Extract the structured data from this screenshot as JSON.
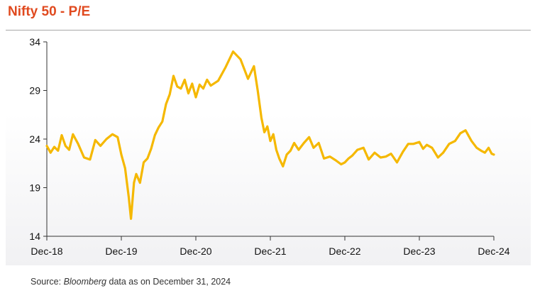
{
  "title": "Nifty 50 - P/E",
  "source": {
    "prefix": "Source: ",
    "italic": "Bloomberg",
    "suffix": " data as on December 31, 2024"
  },
  "colors": {
    "title": "#e04a1f",
    "line": "#f5b800",
    "axis": "#333333"
  },
  "chart_data": {
    "type": "line",
    "title": "Nifty 50 - P/E",
    "xlabel": "",
    "ylabel": "",
    "ylim": [
      14,
      34
    ],
    "yticks": [
      14,
      19,
      24,
      29,
      34
    ],
    "xticks": [
      "Dec-18",
      "Dec-19",
      "Dec-20",
      "Dec-21",
      "Dec-22",
      "Dec-23",
      "Dec-24"
    ],
    "x_range": [
      0,
      6
    ],
    "grid": false,
    "legend": "none",
    "series": [
      {
        "x": [
          0,
          0.05,
          0.1,
          0.15,
          0.2,
          0.25,
          0.3,
          0.35,
          0.42,
          0.5,
          0.58,
          0.65,
          0.72,
          0.8,
          0.88,
          0.95,
          1.0,
          1.05,
          1.1,
          1.13,
          1.17,
          1.2,
          1.25,
          1.3,
          1.35,
          1.4,
          1.45,
          1.5,
          1.55,
          1.6,
          1.65,
          1.7,
          1.75,
          1.8,
          1.85,
          1.9,
          1.95,
          2.0,
          2.05,
          2.1,
          2.15,
          2.2,
          2.3,
          2.4,
          2.5,
          2.6,
          2.7,
          2.78,
          2.83,
          2.88,
          2.92,
          2.96,
          3.0,
          3.04,
          3.08,
          3.12,
          3.17,
          3.22,
          3.27,
          3.32,
          3.38,
          3.45,
          3.52,
          3.58,
          3.65,
          3.72,
          3.8,
          3.88,
          3.95,
          4.0,
          4.05,
          4.1,
          4.17,
          4.25,
          4.32,
          4.4,
          4.48,
          4.55,
          4.62,
          4.7,
          4.78,
          4.85,
          4.92,
          5.0,
          5.05,
          5.1,
          5.17,
          5.25,
          5.32,
          5.4,
          5.48,
          5.55,
          5.62,
          5.7,
          5.77,
          5.83,
          5.88,
          5.93,
          5.97,
          6.0
        ],
        "values": [
          23.3,
          22.6,
          23.2,
          22.8,
          24.4,
          23.3,
          22.9,
          24.5,
          23.5,
          22.1,
          21.9,
          23.9,
          23.3,
          24.0,
          24.5,
          24.2,
          22.4,
          21.0,
          18.0,
          15.8,
          19.5,
          20.4,
          19.5,
          21.6,
          22.0,
          23.0,
          24.4,
          25.2,
          25.8,
          27.6,
          28.6,
          30.5,
          29.4,
          29.2,
          30.1,
          28.7,
          29.7,
          28.3,
          29.6,
          29.2,
          30.1,
          29.5,
          30.0,
          31.4,
          33.0,
          32.2,
          30.2,
          31.5,
          29.0,
          26.2,
          24.7,
          25.3,
          23.8,
          24.5,
          22.9,
          22.0,
          21.2,
          22.4,
          22.8,
          23.6,
          22.9,
          23.6,
          24.2,
          23.1,
          23.6,
          22.0,
          22.2,
          21.8,
          21.4,
          21.6,
          22.0,
          22.3,
          22.9,
          23.1,
          21.9,
          22.6,
          22.1,
          22.2,
          22.5,
          21.6,
          22.7,
          23.5,
          23.5,
          23.7,
          23.0,
          23.4,
          23.1,
          22.1,
          22.6,
          23.5,
          23.8,
          24.6,
          24.9,
          23.8,
          23.1,
          22.8,
          22.6,
          23.1,
          22.5,
          22.4
        ]
      }
    ]
  }
}
